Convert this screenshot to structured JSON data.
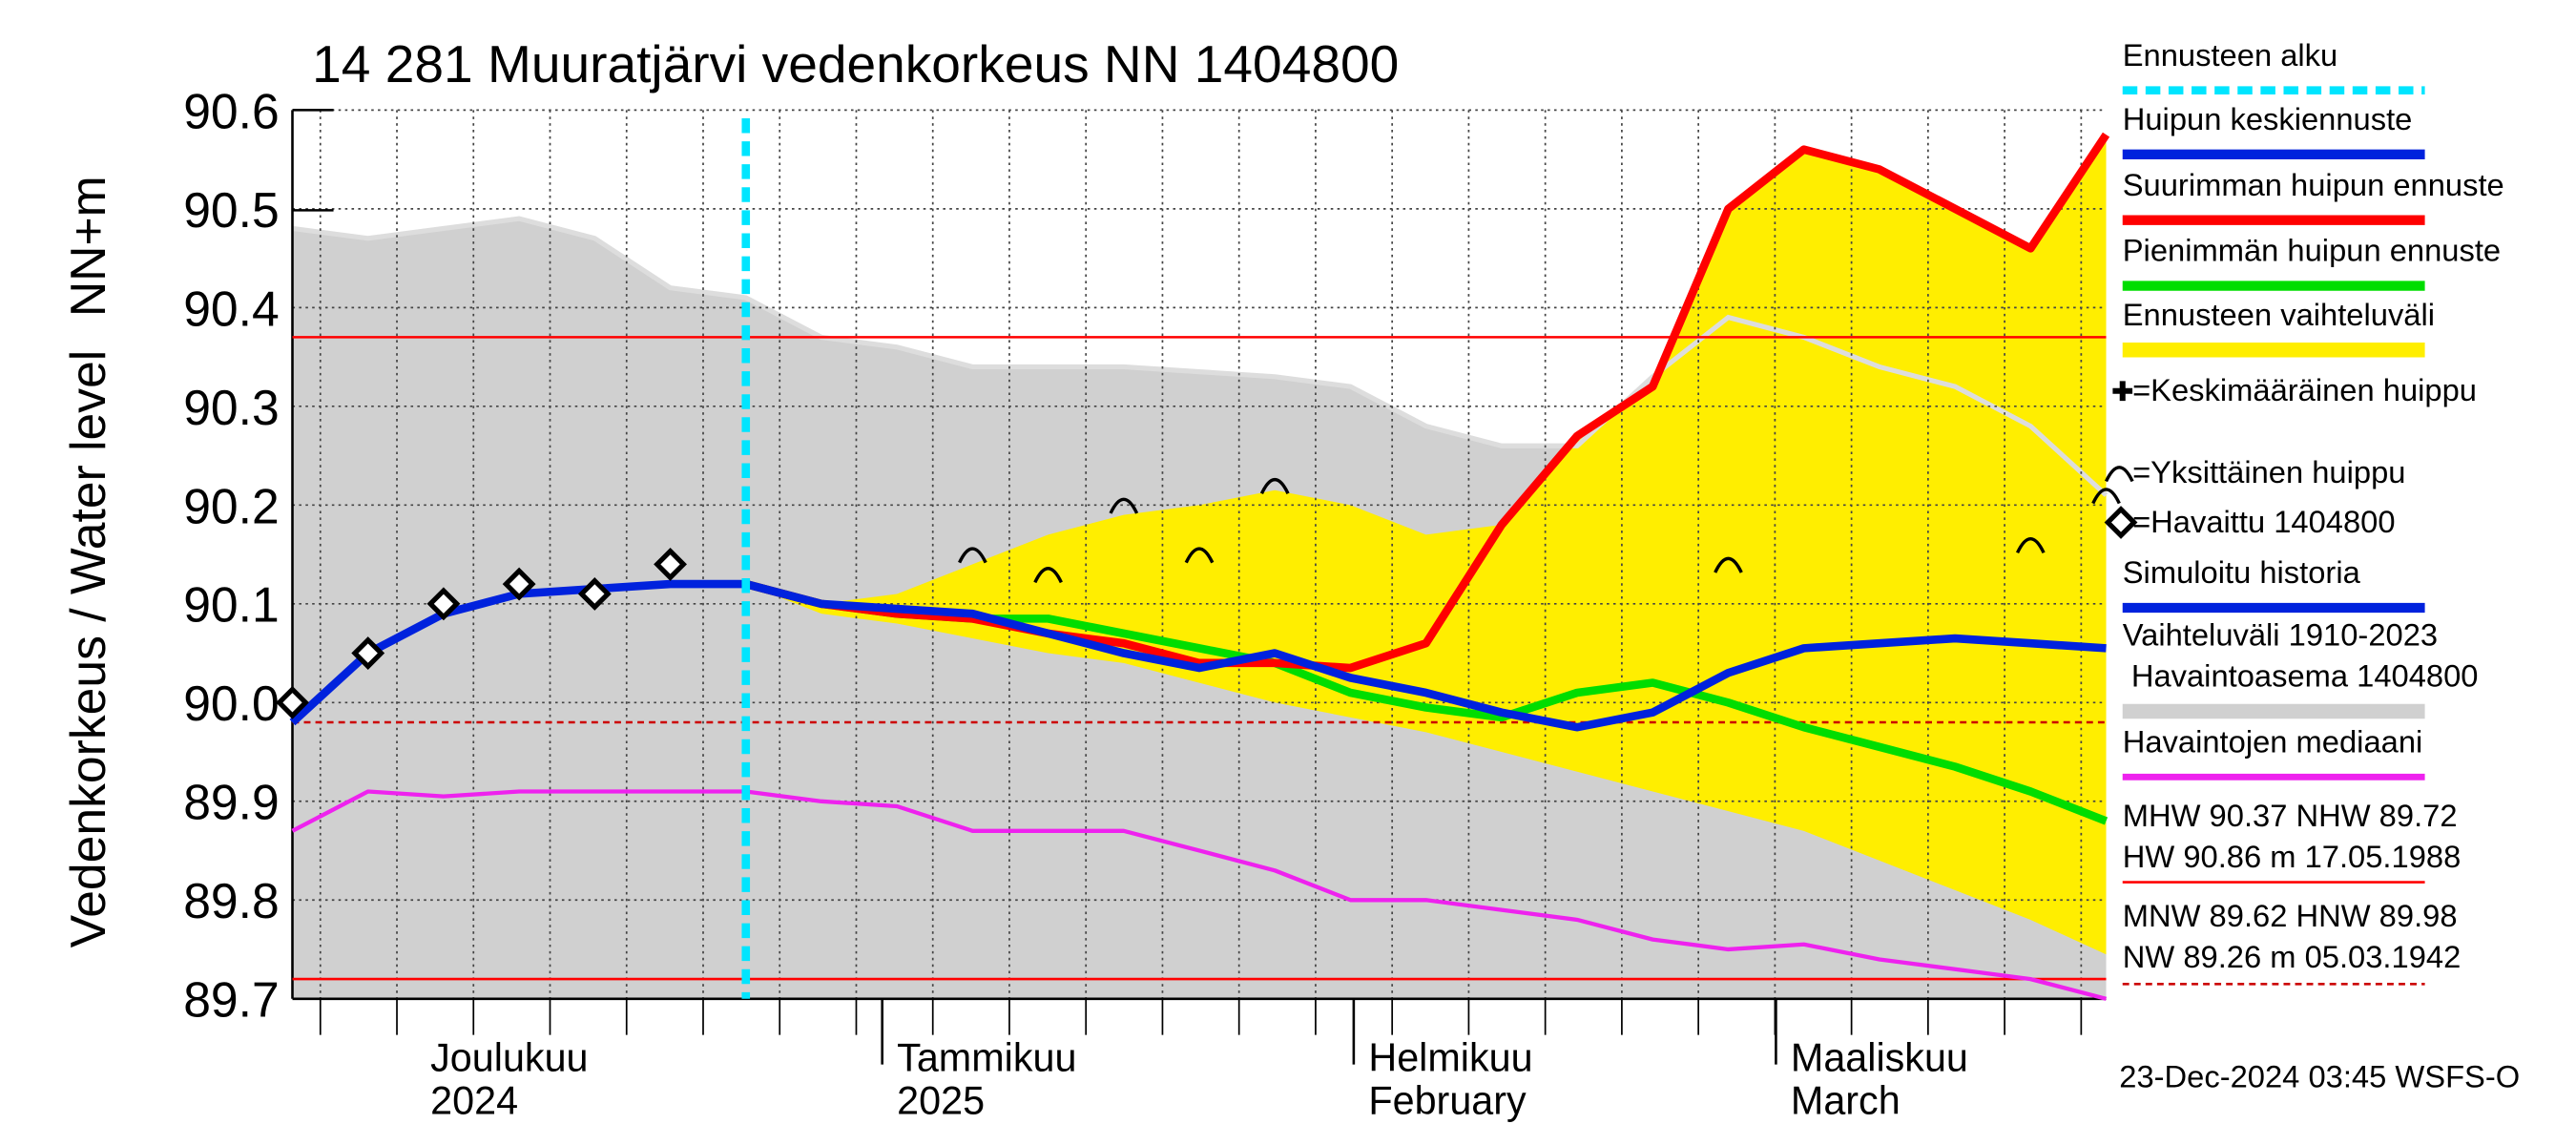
{
  "chart_data": {
    "type": "line",
    "title": "14 281 Muuratjärvi vedenkorkeus NN 1404800",
    "y_label": "Vedenkorkeus / Water level",
    "y_unit": "NN+m",
    "ylim": [
      89.7,
      90.6
    ],
    "yticks": [
      89.7,
      89.8,
      89.9,
      {
        "value": 90.0,
        "label": "90.0"
      },
      90.1,
      90.2,
      90.3,
      90.4,
      90.5,
      90.6
    ],
    "grid": true,
    "x_labels": [
      [
        "Joulukuu",
        "2024"
      ],
      [
        "Tammikuu",
        "2025"
      ],
      [
        "Helmikuu",
        "February"
      ],
      [
        "Maaliskuu",
        "March"
      ]
    ],
    "series": [
      {
        "name": "Ennusteen alku",
        "color": "#00e5ff",
        "kind": "vline"
      },
      {
        "name": "Huipun keskiennuste",
        "color": "#0022dd",
        "kind": "line",
        "values": [
          null,
          null,
          null,
          null,
          null,
          null,
          90.12,
          90.1,
          90.095,
          90.09,
          90.07,
          90.05,
          90.035,
          90.05,
          90.025,
          90.01,
          89.99,
          89.975,
          89.99,
          90.03,
          90.055,
          90.06,
          90.065,
          90.06,
          90.055
        ]
      },
      {
        "name": "Suurimman huipun ennuste",
        "color": "#ff0000",
        "kind": "line",
        "values": [
          null,
          null,
          null,
          null,
          null,
          null,
          90.12,
          90.1,
          90.09,
          90.085,
          90.07,
          90.06,
          90.04,
          90.04,
          90.035,
          90.06,
          90.18,
          90.27,
          90.32,
          90.5,
          90.56,
          90.54,
          90.5,
          90.46,
          90.575
        ]
      },
      {
        "name": "Pienimmän huipun ennuste",
        "color": "#00dd00",
        "kind": "line",
        "values": [
          null,
          null,
          null,
          null,
          null,
          null,
          90.12,
          90.1,
          90.09,
          90.085,
          90.085,
          90.07,
          90.055,
          90.04,
          90.01,
          89.995,
          89.985,
          90.01,
          90.02,
          90.0,
          89.975,
          89.955,
          89.935,
          89.91,
          89.88
        ]
      },
      {
        "name": "Ennusteen vaihteluväli",
        "color": "#ffee00",
        "kind": "band",
        "upper": [
          null,
          null,
          null,
          null,
          null,
          null,
          90.12,
          90.1,
          90.11,
          90.14,
          90.17,
          90.19,
          90.2,
          90.215,
          90.2,
          90.17,
          90.18,
          90.27,
          90.32,
          90.5,
          90.56,
          90.54,
          90.5,
          90.46,
          90.575
        ],
        "lower": [
          null,
          null,
          null,
          null,
          null,
          null,
          90.12,
          90.09,
          90.08,
          90.065,
          90.05,
          90.04,
          90.02,
          90.0,
          89.985,
          89.97,
          89.95,
          89.93,
          89.91,
          89.89,
          89.87,
          89.84,
          89.81,
          89.78,
          89.745
        ]
      },
      {
        "name": "=Keskimääräinen huippu",
        "color": "#000000",
        "kind": "plus"
      },
      {
        "name": "=Yksittäinen huippu",
        "color": "#000000",
        "kind": "arc",
        "values": [
          null,
          null,
          null,
          null,
          null,
          null,
          null,
          null,
          null,
          90.15,
          90.13,
          90.2,
          90.15,
          90.22,
          null,
          null,
          null,
          null,
          null,
          90.14,
          null,
          null,
          null,
          90.16,
          90.21
        ]
      },
      {
        "name": "=Havaittu 1404800",
        "color": "#000000",
        "kind": "diamond",
        "values": [
          90.0,
          90.05,
          90.1,
          90.12,
          90.11,
          90.14,
          null,
          null,
          null,
          null,
          null,
          null,
          null,
          null,
          null,
          null,
          null,
          null,
          null,
          null,
          null,
          null,
          null,
          null,
          null
        ]
      },
      {
        "name": "Simuloitu historia",
        "color": "#0022dd",
        "kind": "line",
        "values": [
          89.98,
          90.05,
          90.09,
          90.11,
          90.115,
          90.12,
          90.12,
          null,
          null,
          null,
          null,
          null,
          null,
          null,
          null,
          null,
          null,
          null,
          null,
          null,
          null,
          null,
          null,
          null,
          null
        ]
      },
      {
        "name": "Vaihteluväli 1910-2023\n Havaintoasema 1404800",
        "color": "#d0d0d0",
        "kind": "area",
        "values": [
          90.48,
          90.47,
          90.48,
          90.49,
          90.47,
          90.42,
          90.41,
          90.37,
          90.36,
          90.34,
          90.34,
          90.34,
          90.335,
          90.33,
          90.32,
          90.28,
          90.26,
          90.26,
          90.33,
          90.39,
          90.37,
          90.34,
          90.32,
          90.28,
          90.21
        ]
      },
      {
        "name": "Havaintojen mediaani",
        "color": "#ee22ee",
        "kind": "line",
        "values": [
          89.87,
          89.91,
          89.905,
          89.91,
          89.91,
          89.91,
          89.91,
          89.9,
          89.895,
          89.87,
          89.87,
          89.87,
          89.85,
          89.83,
          89.8,
          89.8,
          89.79,
          89.78,
          89.76,
          89.75,
          89.755,
          89.74,
          89.73,
          89.72,
          89.7
        ]
      }
    ],
    "hlines": [
      {
        "value": 90.37,
        "color": "#ff0000",
        "dashed": false
      },
      {
        "value": 89.72,
        "color": "#ff0000",
        "dashed": false
      },
      {
        "value": 89.98,
        "color": "#cc0000",
        "dashed": true
      }
    ],
    "stats": [
      "MHW  90.37 NHW  89.72",
      "HW  90.86 m 17.05.1988",
      "MNW  89.62 HNW  89.98",
      "NW  89.26 m 05.03.1942"
    ],
    "footer": "23-Dec-2024 03:45 WSFS-O"
  }
}
